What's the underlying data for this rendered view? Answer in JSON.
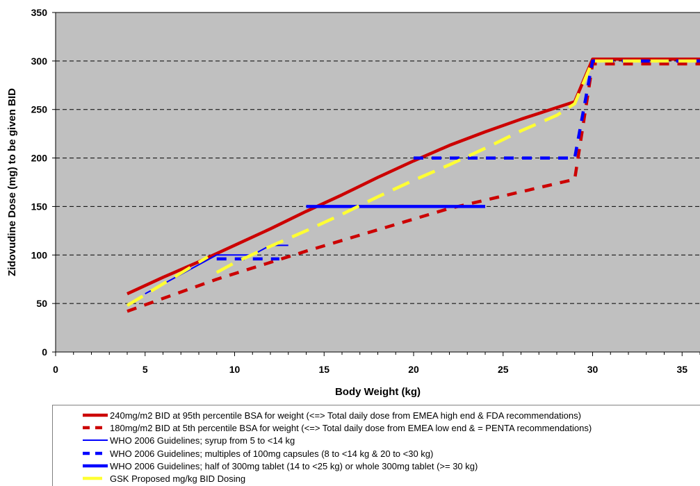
{
  "chart_data": {
    "type": "line",
    "title": "",
    "xlabel": "Body Weight (kg)",
    "ylabel": "Zidovudine Dose (mg) to be given BID",
    "xlim": [
      0,
      36
    ],
    "ylim": [
      0,
      350
    ],
    "x_ticks": [
      0,
      5,
      10,
      15,
      20,
      25,
      30,
      35
    ],
    "y_ticks": [
      0,
      50,
      100,
      150,
      200,
      250,
      300,
      350
    ],
    "grid": "horizontal dashed",
    "plot_background": "#c0c0c0",
    "legend_position": "bottom",
    "series": [
      {
        "name": "240mg/m2 BID at 95th percentile BSA for weight (<=> Total daily dose from EMEA high end & FDA recommendations)",
        "color": "#cc0000",
        "style": "solid",
        "width": "thick",
        "x": [
          4,
          6,
          8,
          10,
          12,
          14,
          16,
          18,
          20,
          22,
          24,
          26,
          28,
          29,
          30,
          36
        ],
        "y": [
          60,
          77,
          93,
          110,
          127,
          145,
          162,
          180,
          197,
          213,
          227,
          240,
          252,
          258,
          302,
          302
        ]
      },
      {
        "name": "180mg/m2 BID at 5th percentile BSA for weight (<=> Total daily dose from EMEA low end & = PENTA recommendations)",
        "color": "#cc0000",
        "style": "dashed",
        "width": "thick",
        "x": [
          4,
          9,
          14,
          22,
          29,
          30,
          36
        ],
        "y": [
          42,
          75,
          104,
          148,
          178,
          297,
          297
        ]
      },
      {
        "name": "WHO 2006 Guidelines; syrup from 5 to <14 kg",
        "color": "#0000ff",
        "style": "solid",
        "width": "thin",
        "x": [
          5,
          7,
          9,
          11,
          12,
          13
        ],
        "y": [
          60,
          80,
          100,
          100,
          110,
          110
        ]
      },
      {
        "name": "WHO 2006 Guidelines; multiples of 100mg capsules (8 to <14 kg & 20 to <30 kg)",
        "color": "#0000ff",
        "style": "dashed",
        "width": "thick",
        "segments": [
          {
            "x": [
              9,
              12.5
            ],
            "y": [
              96,
              96
            ]
          },
          {
            "x": [
              20,
              29,
              30,
              36
            ],
            "y": [
              200,
              200,
              300,
              300
            ]
          }
        ]
      },
      {
        "name": "WHO 2006 Guidelines; half of 300mg tablet (14 to <25 kg) or whole 300mg tablet (>= 30 kg)",
        "color": "#0000ff",
        "style": "solid",
        "width": "thick",
        "x": [
          14,
          24
        ],
        "y": [
          150,
          150
        ]
      },
      {
        "name": "GSK Proposed mg/kg BID Dosing",
        "color": "#ffff33",
        "style": "dashed",
        "width": "thick",
        "segments": [
          {
            "x": [
              4,
              8.5
            ],
            "y": [
              48,
              98
            ]
          },
          {
            "x": [
              9,
              10,
              12,
              14,
              16,
              18,
              20,
              22,
              24,
              26,
              28,
              29,
              30,
              36
            ],
            "y": [
              82,
              92,
              109,
              125,
              142,
              160,
              177,
              193,
              210,
              228,
              244,
              256,
              300,
              300
            ]
          }
        ]
      }
    ]
  }
}
